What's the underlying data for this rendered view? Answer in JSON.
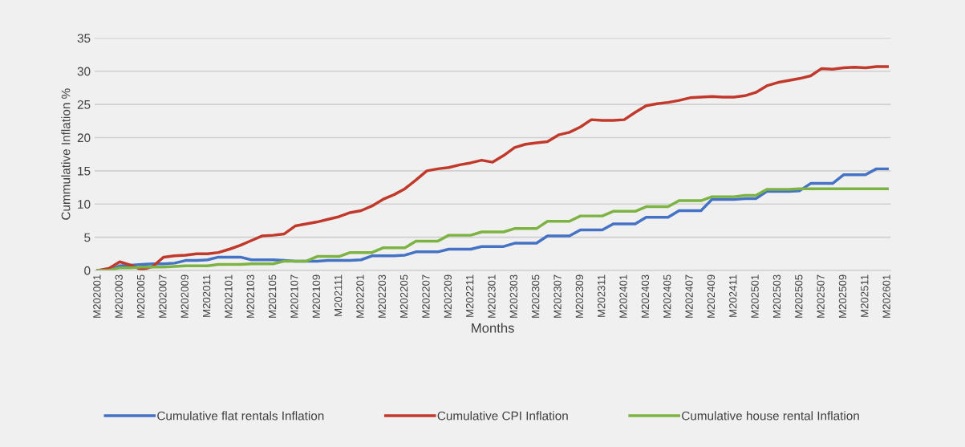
{
  "chart_data": {
    "type": "line",
    "xlabel": "Months",
    "ylabel": "Cummulative Inflation %",
    "categories": [
      "M202001",
      null,
      "M202003",
      null,
      "M202005",
      null,
      "M202007",
      null,
      "M202009",
      null,
      "M202011",
      null,
      "M202101",
      null,
      "M202103",
      null,
      "M202105",
      null,
      "M202107",
      null,
      "M202109",
      null,
      "M202111",
      null,
      "M202201",
      null,
      "M202203",
      null,
      "M202205",
      null,
      "M202207",
      null,
      "M202209",
      null,
      "M202211",
      null,
      "M202301",
      null,
      "M202303",
      null,
      "M202305",
      null,
      "M202307",
      null,
      "M202309",
      null,
      "M202311",
      null,
      "M202401",
      null,
      "M202403",
      null,
      "M202405",
      null,
      "M202407",
      null,
      "M202409",
      null,
      "M202411",
      null,
      "M202501",
      null,
      "M202503",
      null,
      "M202505",
      null,
      "M202507",
      null,
      "M202509",
      null,
      "M202511",
      null,
      "M202601"
    ],
    "series": [
      {
        "name": "Cumulative flat rentals Inflation",
        "color": "#4472c4",
        "values": [
          0,
          0,
          0.7,
          0.8,
          0.9,
          1.0,
          1.0,
          1.1,
          1.5,
          1.5,
          1.6,
          2.0,
          2.0,
          2.0,
          1.6,
          1.6,
          1.6,
          1.5,
          1.4,
          1.4,
          1.4,
          1.5,
          1.5,
          1.5,
          1.6,
          2.2,
          2.2,
          2.2,
          2.3,
          2.8,
          2.8,
          2.8,
          3.2,
          3.2,
          3.2,
          3.6,
          3.6,
          3.6,
          4.1,
          4.1,
          4.1,
          5.2,
          5.2,
          5.2,
          6.1,
          6.1,
          6.1,
          7.0,
          7.0,
          7.0,
          8.0,
          8.0,
          8.0,
          9.0,
          9.0,
          9.0,
          10.7,
          10.7,
          10.7,
          10.8,
          10.8,
          11.9,
          11.9,
          11.9,
          12.0,
          13.1,
          13.1,
          13.1,
          14.4,
          14.4,
          14.4,
          15.3,
          15.3
        ]
      },
      {
        "name": "Cumulative CPI Inflation",
        "color": "#c0392b",
        "values": [
          0,
          0.3,
          1.3,
          0.8,
          0.1,
          0.6,
          2.0,
          2.2,
          2.3,
          2.5,
          2.5,
          2.7,
          3.2,
          3.8,
          4.5,
          5.2,
          5.3,
          5.5,
          6.7,
          7.0,
          7.3,
          7.7,
          8.1,
          8.7,
          9.0,
          9.7,
          10.7,
          11.4,
          12.3,
          13.6,
          15.0,
          15.3,
          15.5,
          15.9,
          16.2,
          16.6,
          16.3,
          17.3,
          18.5,
          19.0,
          19.2,
          19.4,
          20.4,
          20.8,
          21.6,
          22.7,
          22.6,
          22.6,
          22.7,
          23.8,
          24.8,
          25.1,
          25.3,
          25.6,
          26.0,
          26.1,
          26.2,
          26.1,
          26.1,
          26.3,
          26.8,
          27.8,
          28.3,
          28.6,
          28.9,
          29.3,
          30.4,
          30.3,
          30.5,
          30.6,
          30.5,
          30.7,
          30.7
        ]
      },
      {
        "name": "Cumulative house rental Inflation",
        "color": "#7cb342",
        "values": [
          0,
          0,
          0.4,
          0.4,
          0.5,
          0.5,
          0.5,
          0.6,
          0.7,
          0.7,
          0.7,
          0.9,
          0.9,
          0.9,
          1.0,
          1.0,
          1.0,
          1.4,
          1.4,
          1.4,
          2.1,
          2.1,
          2.1,
          2.7,
          2.7,
          2.7,
          3.4,
          3.4,
          3.4,
          4.4,
          4.4,
          4.4,
          5.3,
          5.3,
          5.3,
          5.8,
          5.8,
          5.8,
          6.3,
          6.3,
          6.3,
          7.4,
          7.4,
          7.4,
          8.2,
          8.2,
          8.2,
          8.9,
          8.9,
          8.9,
          9.6,
          9.6,
          9.6,
          10.5,
          10.5,
          10.5,
          11.1,
          11.1,
          11.1,
          11.3,
          11.3,
          12.2,
          12.2,
          12.2,
          12.3,
          12.3,
          12.3,
          12.3,
          12.3,
          12.3,
          12.3,
          12.3,
          12.3
        ]
      }
    ],
    "ylim": [
      0,
      35
    ],
    "yticks": [
      0,
      5,
      10,
      15,
      20,
      25,
      30,
      35
    ],
    "grid": "y",
    "legend": "bottom",
    "marker": "none",
    "line_style": "solid"
  }
}
